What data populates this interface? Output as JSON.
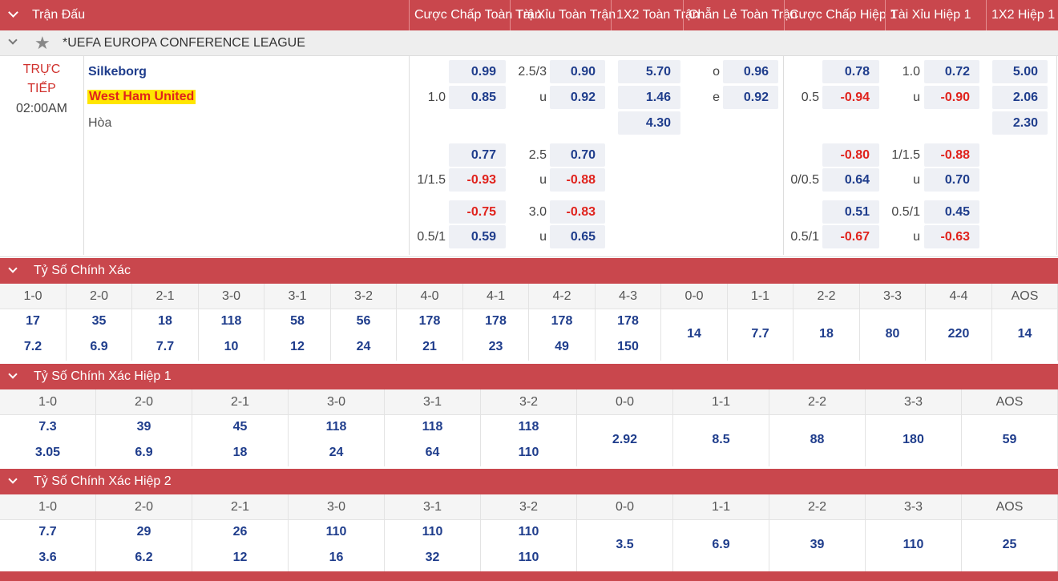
{
  "header": {
    "match_col": "Trận Đấu",
    "columns": [
      "Cược Chấp Toàn Trận",
      "Tài Xỉu Toàn Trận",
      "1X2 Toàn Trận",
      "Chẵn Lẻ Toàn Trận",
      "Cược Chấp Hiệp 1",
      "Tài Xỉu Hiệp 1",
      "1X2 Hiệp 1"
    ]
  },
  "league": {
    "name": "*UEFA EUROPA CONFERENCE LEAGUE"
  },
  "match": {
    "status_line1": "TRỰC",
    "status_line2": "TIẾP",
    "time": "02:00AM",
    "home": "Silkeborg",
    "away": "West Ham United",
    "draw": "Hòa"
  },
  "odds_rows": [
    {
      "hdp_label_top": "",
      "hdp_label_bot": "1.0",
      "hdp_top": "0.99",
      "hdp_bot": "0.85",
      "ou_label_top": "2.5/3",
      "ou_label_bot": "u",
      "ou_top": "0.90",
      "ou_bot": "0.92",
      "x12_home": "5.70",
      "x12_away": "1.46",
      "x12_draw": "4.30",
      "oe_label_top": "o",
      "oe_label_bot": "e",
      "oe_top": "0.96",
      "oe_bot": "0.92",
      "h1_hdp_label_top": "",
      "h1_hdp_label_bot": "0.5",
      "h1_hdp_top": "0.78",
      "h1_hdp_bot": "-0.94",
      "h1_ou_label_top": "1.0",
      "h1_ou_label_bot": "u",
      "h1_ou_top": "0.72",
      "h1_ou_bot": "-0.90",
      "h1_x12_home": "5.00",
      "h1_x12_away": "2.06",
      "h1_x12_draw": "2.30"
    },
    {
      "hdp_label_top": "",
      "hdp_label_bot": "1/1.5",
      "hdp_top": "0.77",
      "hdp_bot": "-0.93",
      "ou_label_top": "2.5",
      "ou_label_bot": "u",
      "ou_top": "0.70",
      "ou_bot": "-0.88",
      "h1_hdp_label_top": "",
      "h1_hdp_label_bot": "0/0.5",
      "h1_hdp_top": "-0.80",
      "h1_hdp_bot": "0.64",
      "h1_ou_label_top": "1/1.5",
      "h1_ou_label_bot": "u",
      "h1_ou_top": "-0.88",
      "h1_ou_bot": "0.70"
    },
    {
      "hdp_label_top": "",
      "hdp_label_bot": "0.5/1",
      "hdp_top": "-0.75",
      "hdp_bot": "0.59",
      "ou_label_top": "3.0",
      "ou_label_bot": "u",
      "ou_top": "-0.83",
      "ou_bot": "0.65",
      "h1_hdp_label_top": "",
      "h1_hdp_label_bot": "0.5/1",
      "h1_hdp_top": "0.51",
      "h1_hdp_bot": "-0.67",
      "h1_ou_label_top": "0.5/1",
      "h1_ou_label_bot": "u",
      "h1_ou_top": "0.45",
      "h1_ou_bot": "-0.63"
    }
  ],
  "sections": [
    {
      "title": "Tỷ Số Chính Xác",
      "cells": [
        {
          "score": "1-0",
          "top": "17",
          "bot": "7.2"
        },
        {
          "score": "2-0",
          "top": "35",
          "bot": "6.9"
        },
        {
          "score": "2-1",
          "top": "18",
          "bot": "7.7"
        },
        {
          "score": "3-0",
          "top": "118",
          "bot": "10"
        },
        {
          "score": "3-1",
          "top": "58",
          "bot": "12"
        },
        {
          "score": "3-2",
          "top": "56",
          "bot": "24"
        },
        {
          "score": "4-0",
          "top": "178",
          "bot": "21"
        },
        {
          "score": "4-1",
          "top": "178",
          "bot": "23"
        },
        {
          "score": "4-2",
          "top": "178",
          "bot": "49"
        },
        {
          "score": "4-3",
          "top": "178",
          "bot": "150"
        },
        {
          "score": "0-0",
          "mid": "14"
        },
        {
          "score": "1-1",
          "mid": "7.7"
        },
        {
          "score": "2-2",
          "mid": "18"
        },
        {
          "score": "3-3",
          "mid": "80"
        },
        {
          "score": "4-4",
          "mid": "220"
        },
        {
          "score": "AOS",
          "mid": "14"
        }
      ]
    },
    {
      "title": "Tỷ Số Chính Xác Hiệp 1",
      "cells": [
        {
          "score": "1-0",
          "top": "7.3",
          "bot": "3.05"
        },
        {
          "score": "2-0",
          "top": "39",
          "bot": "6.9"
        },
        {
          "score": "2-1",
          "top": "45",
          "bot": "18"
        },
        {
          "score": "3-0",
          "top": "118",
          "bot": "24"
        },
        {
          "score": "3-1",
          "top": "118",
          "bot": "64"
        },
        {
          "score": "3-2",
          "top": "118",
          "bot": "110"
        },
        {
          "score": "0-0",
          "mid": "2.92"
        },
        {
          "score": "1-1",
          "mid": "8.5"
        },
        {
          "score": "2-2",
          "mid": "88"
        },
        {
          "score": "3-3",
          "mid": "180"
        },
        {
          "score": "AOS",
          "mid": "59"
        }
      ]
    },
    {
      "title": "Tỷ Số Chính Xác Hiệp 2",
      "cells": [
        {
          "score": "1-0",
          "top": "7.7",
          "bot": "3.6"
        },
        {
          "score": "2-0",
          "top": "29",
          "bot": "6.2"
        },
        {
          "score": "2-1",
          "top": "26",
          "bot": "12"
        },
        {
          "score": "3-0",
          "top": "110",
          "bot": "16"
        },
        {
          "score": "3-1",
          "top": "110",
          "bot": "32"
        },
        {
          "score": "3-2",
          "top": "110",
          "bot": "110"
        },
        {
          "score": "0-0",
          "mid": "3.5"
        },
        {
          "score": "1-1",
          "mid": "6.9"
        },
        {
          "score": "2-2",
          "mid": "39"
        },
        {
          "score": "3-3",
          "mid": "110"
        },
        {
          "score": "AOS",
          "mid": "25"
        }
      ]
    }
  ],
  "icons": {
    "collapse": "chevron-down-icon",
    "favorite": "star-icon"
  },
  "colors": {
    "header_bg": "#c9474d",
    "odds_blue": "#1f3d8c",
    "odds_red": "#e0231d",
    "highlight": "#ffe600"
  }
}
